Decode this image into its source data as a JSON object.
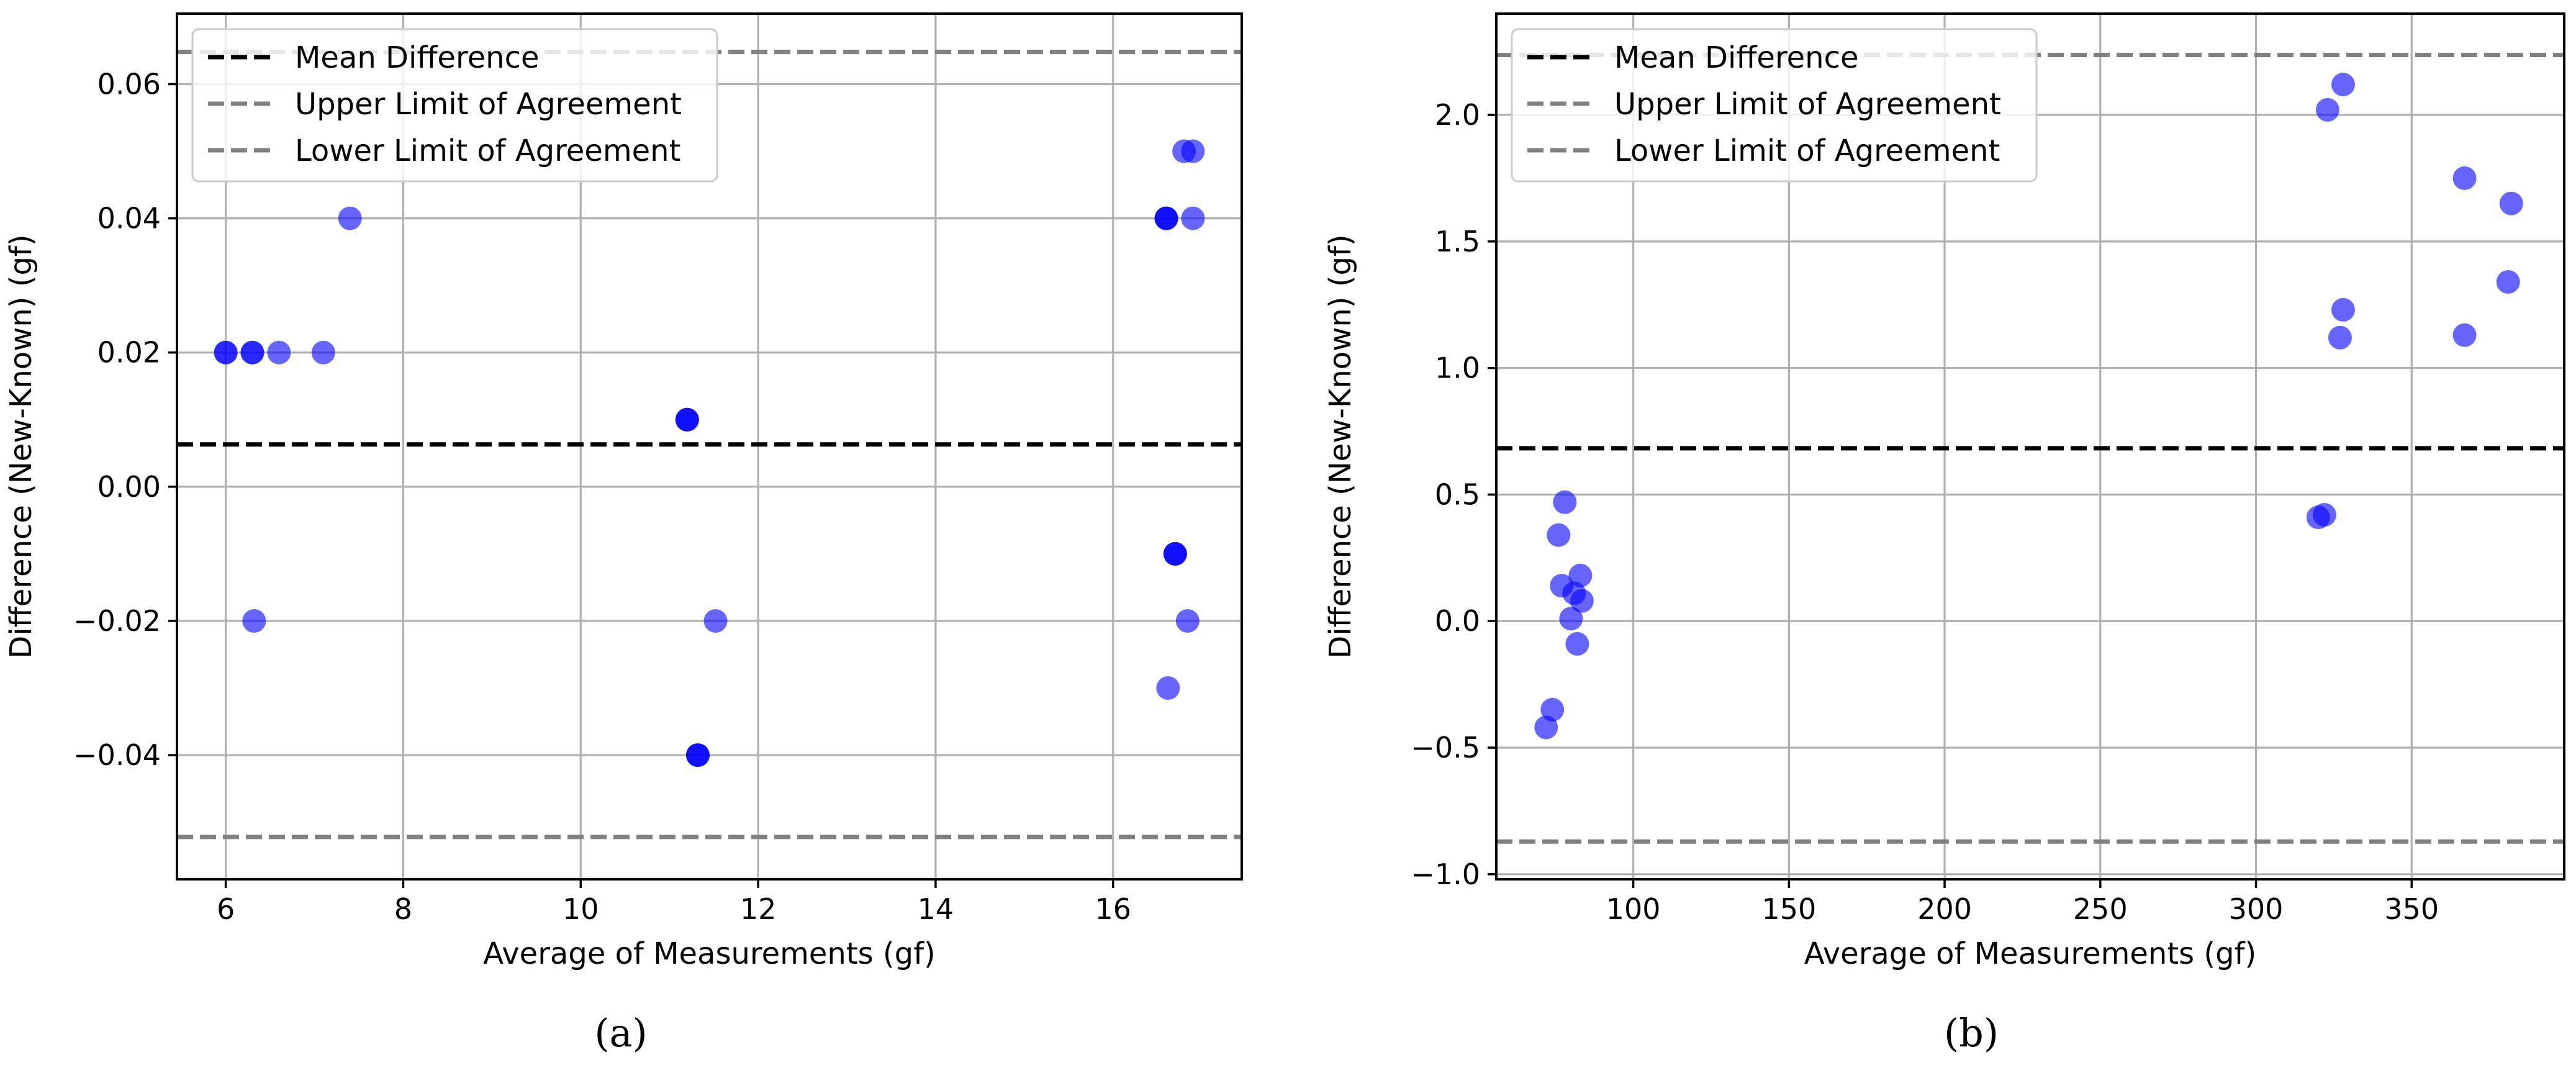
{
  "chart_data": [
    {
      "type": "scatter",
      "panel_label": "(a)",
      "xlabel": "Average of Measurements (gf)",
      "ylabel": "Difference (New-Known) (gf)",
      "xlim": [
        5.45,
        17.45
      ],
      "ylim": [
        -0.0585,
        0.0705
      ],
      "xticks": [
        6,
        8,
        10,
        12,
        14,
        16
      ],
      "xtick_labels": [
        "6",
        "8",
        "10",
        "12",
        "14",
        "16"
      ],
      "yticks": [
        -0.04,
        -0.02,
        0.0,
        0.02,
        0.04,
        0.06
      ],
      "ytick_labels": [
        "−0.04",
        "−0.02",
        "0.00",
        "0.02",
        "0.04",
        "0.06"
      ],
      "grid": true,
      "legend_position": "top-left",
      "point_color": "#0000ff",
      "point_alpha": 0.6,
      "points": [
        {
          "x": 6.0,
          "y": 0.02,
          "n": 2
        },
        {
          "x": 6.3,
          "y": 0.02,
          "n": 2
        },
        {
          "x": 6.6,
          "y": 0.02,
          "n": 1
        },
        {
          "x": 7.1,
          "y": 0.02,
          "n": 1
        },
        {
          "x": 7.4,
          "y": 0.04,
          "n": 1
        },
        {
          "x": 6.32,
          "y": -0.02,
          "n": 1
        },
        {
          "x": 11.2,
          "y": 0.01,
          "n": 3
        },
        {
          "x": 11.32,
          "y": -0.04,
          "n": 3
        },
        {
          "x": 11.52,
          "y": -0.02,
          "n": 1
        },
        {
          "x": 16.6,
          "y": 0.04,
          "n": 3
        },
        {
          "x": 16.9,
          "y": 0.04,
          "n": 1
        },
        {
          "x": 16.8,
          "y": 0.05,
          "n": 1
        },
        {
          "x": 16.9,
          "y": 0.05,
          "n": 1
        },
        {
          "x": 16.7,
          "y": -0.01,
          "n": 3
        },
        {
          "x": 16.84,
          "y": -0.02,
          "n": 1
        },
        {
          "x": 16.62,
          "y": -0.03,
          "n": 1
        }
      ],
      "lines": [
        {
          "name": "Mean Difference",
          "y": 0.0063,
          "color": "#000000"
        },
        {
          "name": "Upper Limit of Agreement",
          "y": 0.0648,
          "color": "#808080"
        },
        {
          "name": "Lower Limit of Agreement",
          "y": -0.0522,
          "color": "#808080"
        }
      ]
    },
    {
      "type": "scatter",
      "panel_label": "(b)",
      "xlabel": "Average of Measurements (gf)",
      "ylabel": "Difference (New-Known) (gf)",
      "xlim": [
        56,
        399
      ],
      "ylim": [
        -1.02,
        2.4
      ],
      "xticks": [
        100,
        150,
        200,
        250,
        300,
        350
      ],
      "xtick_labels": [
        "100",
        "150",
        "200",
        "250",
        "300",
        "350"
      ],
      "yticks": [
        -1.0,
        -0.5,
        0.0,
        0.5,
        1.0,
        1.5,
        2.0
      ],
      "ytick_labels": [
        "−1.0",
        "−0.5",
        "0.0",
        "0.5",
        "1.0",
        "1.5",
        "2.0"
      ],
      "grid": true,
      "legend_position": "top-left",
      "point_color": "#0000ff",
      "point_alpha": 0.6,
      "points": [
        {
          "x": 72,
          "y": -0.42,
          "n": 1
        },
        {
          "x": 74,
          "y": -0.35,
          "n": 1
        },
        {
          "x": 76,
          "y": 0.34,
          "n": 1
        },
        {
          "x": 77,
          "y": 0.14,
          "n": 1
        },
        {
          "x": 78,
          "y": 0.47,
          "n": 1
        },
        {
          "x": 80,
          "y": 0.01,
          "n": 1
        },
        {
          "x": 81,
          "y": 0.11,
          "n": 1
        },
        {
          "x": 82,
          "y": -0.09,
          "n": 1
        },
        {
          "x": 83,
          "y": 0.18,
          "n": 1
        },
        {
          "x": 83.5,
          "y": 0.08,
          "n": 1
        },
        {
          "x": 320,
          "y": 0.41,
          "n": 1
        },
        {
          "x": 322,
          "y": 0.42,
          "n": 1
        },
        {
          "x": 323,
          "y": 2.02,
          "n": 1
        },
        {
          "x": 328,
          "y": 2.12,
          "n": 1
        },
        {
          "x": 328,
          "y": 1.23,
          "n": 1
        },
        {
          "x": 327,
          "y": 1.12,
          "n": 1
        },
        {
          "x": 367,
          "y": 1.75,
          "n": 1
        },
        {
          "x": 367,
          "y": 1.13,
          "n": 1
        },
        {
          "x": 382,
          "y": 1.65,
          "n": 1
        },
        {
          "x": 381,
          "y": 1.34,
          "n": 1
        }
      ],
      "lines": [
        {
          "name": "Mean Difference",
          "y": 0.683,
          "color": "#000000"
        },
        {
          "name": "Upper Limit of Agreement",
          "y": 2.237,
          "color": "#808080"
        },
        {
          "name": "Lower Limit of Agreement",
          "y": -0.871,
          "color": "#808080"
        }
      ]
    }
  ]
}
